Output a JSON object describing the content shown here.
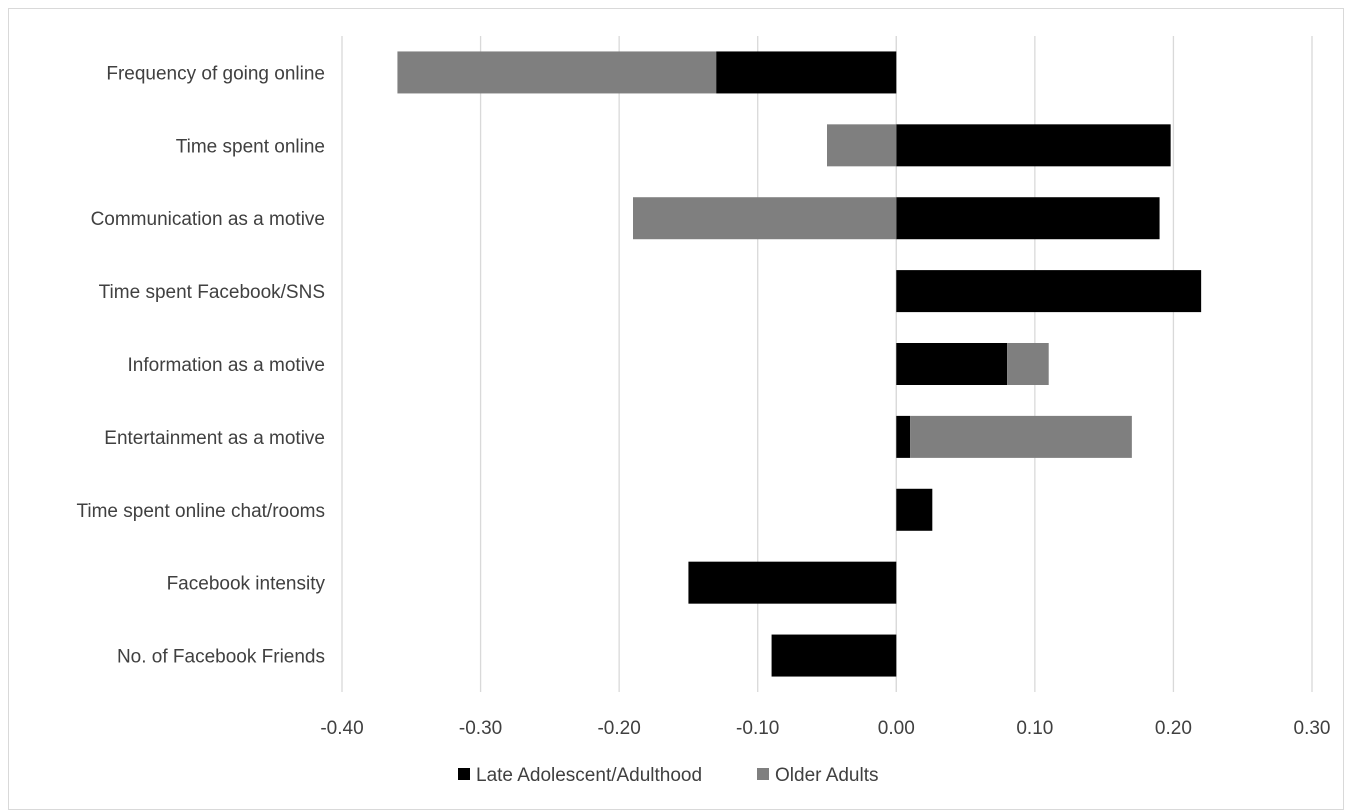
{
  "chart_data": {
    "type": "bar",
    "orientation": "horizontal",
    "stacked": true,
    "categories": [
      "Frequency of going online",
      "Time spent online",
      "Communication as a motive",
      "Time spent Facebook/SNS",
      "Information as a motive",
      "Entertainment as a motive",
      "Time spent online chat/rooms",
      "Facebook intensity",
      "No. of Facebook Friends"
    ],
    "series": [
      {
        "name": "Late Adolescent/Adulthood",
        "color": "#000000",
        "values": [
          -0.13,
          0.198,
          0.19,
          0.22,
          0.08,
          0.01,
          0.026,
          -0.15,
          -0.09
        ]
      },
      {
        "name": "Older Adults",
        "color": "#7f7f7f",
        "values": [
          -0.23,
          -0.05,
          -0.19,
          0.0,
          0.03,
          0.16,
          0.0,
          0.0,
          0.0
        ]
      }
    ],
    "xlim": [
      -0.4,
      0.3
    ],
    "xticks": [
      "-0.40",
      "-0.30",
      "-0.20",
      "-0.10",
      "0.00",
      "0.10",
      "0.20",
      "0.30"
    ],
    "grid": true,
    "legend_position": "bottom"
  }
}
